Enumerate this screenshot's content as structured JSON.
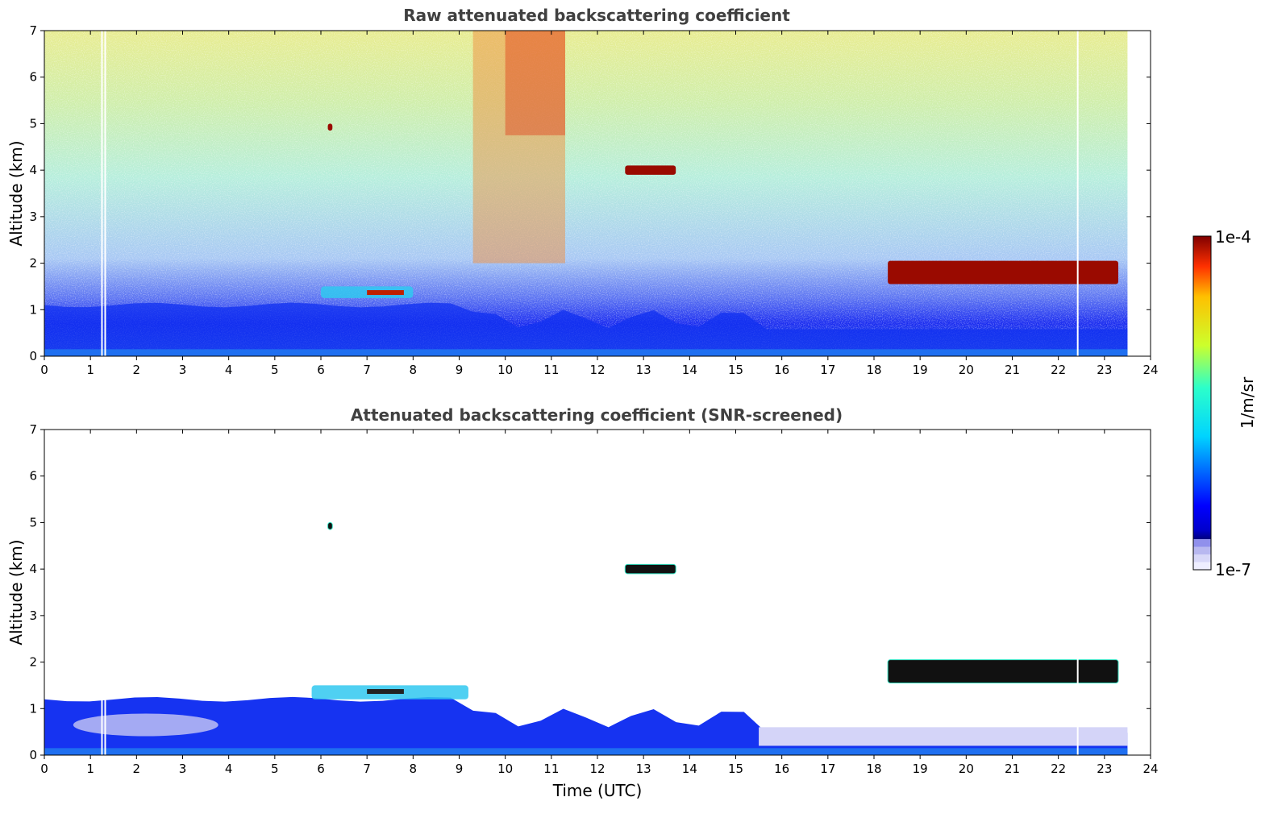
{
  "chart_data": [
    {
      "type": "heatmap",
      "title": "Raw attenuated backscattering coefficient",
      "xlabel": "",
      "ylabel": "Altitude (km)",
      "xlim": [
        0,
        24
      ],
      "ylim": [
        0,
        7
      ],
      "xticks": [
        "0",
        "1",
        "2",
        "3",
        "4",
        "5",
        "6",
        "7",
        "8",
        "9",
        "10",
        "11",
        "12",
        "13",
        "14",
        "15",
        "16",
        "17",
        "18",
        "19",
        "20",
        "21",
        "22",
        "23",
        "24"
      ],
      "yticks": [
        "0",
        "1",
        "2",
        "3",
        "4",
        "5",
        "6",
        "7"
      ],
      "grid": false,
      "data_extent_hours": [
        0,
        23.5
      ],
      "gaps_hours": [
        1.25,
        1.32,
        22.42
      ],
      "features": [
        {
          "kind": "aerosol-boundary-layer",
          "x_range": [
            0,
            23.5
          ],
          "top_km": [
            0.5,
            1.1
          ]
        },
        {
          "kind": "cloud",
          "x_range": [
            18.3,
            23.3
          ],
          "altitude_km": [
            1.55,
            2.05
          ]
        },
        {
          "kind": "cloud",
          "x_range": [
            12.6,
            13.7
          ],
          "altitude_km": [
            3.9,
            4.1
          ]
        },
        {
          "kind": "cloud",
          "x_range": [
            6.15,
            6.25
          ],
          "altitude_km": [
            4.85,
            5.0
          ]
        },
        {
          "kind": "aerosol-layer",
          "x_range": [
            6.0,
            8.0
          ],
          "altitude_km": [
            1.25,
            1.5
          ]
        },
        {
          "kind": "high-background-noise",
          "x_range": [
            9.3,
            11.3
          ],
          "altitude_km": [
            2.0,
            7.0
          ]
        }
      ]
    },
    {
      "type": "heatmap",
      "title": "Attenuated backscattering coefficient (SNR-screened)",
      "xlabel": "Time (UTC)",
      "ylabel": "Altitude (km)",
      "xlim": [
        0,
        24
      ],
      "ylim": [
        0,
        7
      ],
      "xticks": [
        "0",
        "1",
        "2",
        "3",
        "4",
        "5",
        "6",
        "7",
        "8",
        "9",
        "10",
        "11",
        "12",
        "13",
        "14",
        "15",
        "16",
        "17",
        "18",
        "19",
        "20",
        "21",
        "22",
        "23",
        "24"
      ],
      "yticks": [
        "0",
        "1",
        "2",
        "3",
        "4",
        "5",
        "6",
        "7"
      ],
      "grid": false,
      "data_extent_hours": [
        0,
        23.5
      ],
      "gaps_hours": [
        1.25,
        1.32,
        22.42
      ],
      "features": [
        {
          "kind": "aerosol-boundary-layer",
          "x_range": [
            0,
            23.5
          ],
          "top_km": [
            0.4,
            1.2
          ]
        },
        {
          "kind": "cloud",
          "x_range": [
            18.3,
            23.3
          ],
          "altitude_km": [
            1.55,
            2.05
          ]
        },
        {
          "kind": "cloud",
          "x_range": [
            12.6,
            13.7
          ],
          "altitude_km": [
            3.9,
            4.1
          ]
        },
        {
          "kind": "cloud",
          "x_range": [
            6.15,
            6.25
          ],
          "altitude_km": [
            4.85,
            5.0
          ]
        },
        {
          "kind": "aerosol-layer",
          "x_range": [
            5.8,
            9.2
          ],
          "altitude_km": [
            1.2,
            1.5
          ]
        }
      ]
    }
  ],
  "colorbar": {
    "label": "1/m/sr",
    "max_label": "1e-4",
    "min_label": "1e-7",
    "scale": "log",
    "range": [
      1e-07,
      0.0001
    ],
    "colormap": "jet",
    "low_end_colors": [
      "#eeeeff",
      "#d8d8f8",
      "#b8b8f0",
      "#9090ec"
    ]
  }
}
